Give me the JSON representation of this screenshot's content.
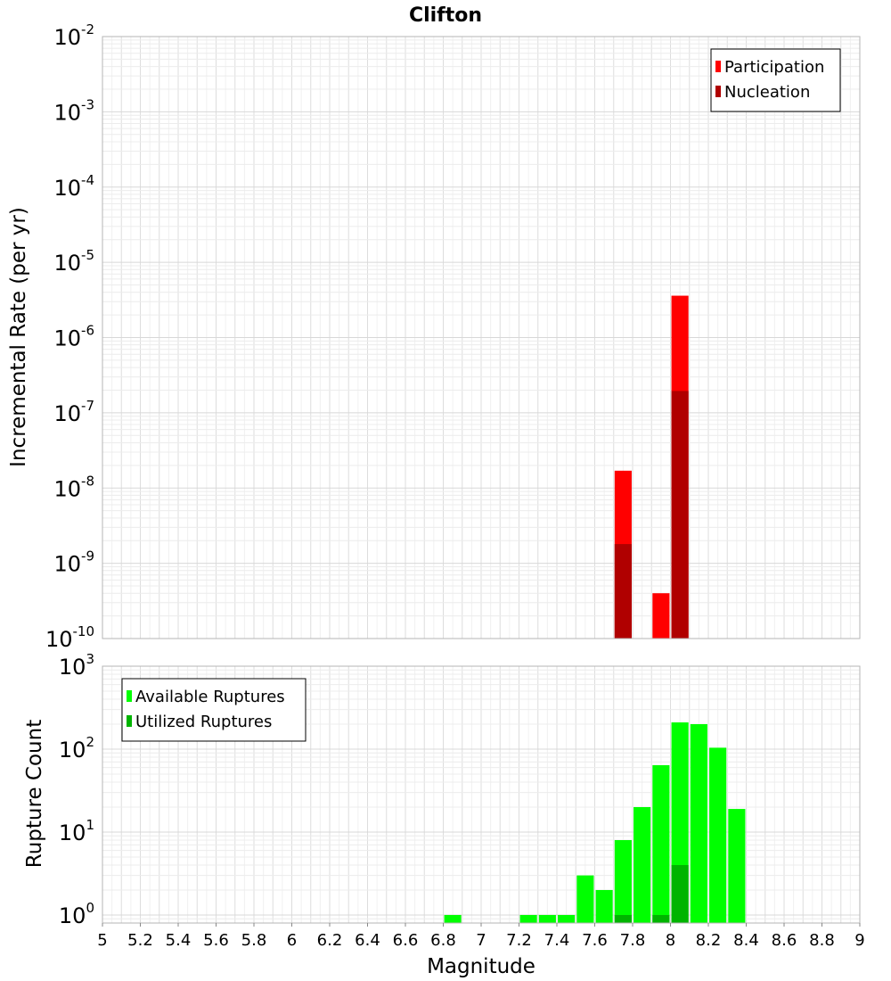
{
  "chart_data": [
    {
      "type": "bar",
      "title": "Clifton",
      "xlabel": "",
      "ylabel": "Incremental Rate (per yr)",
      "y_scale": "log",
      "xlim": [
        5,
        9
      ],
      "ylim": [
        1e-10,
        0.01
      ],
      "grid": true,
      "legend_position": "top-right",
      "series": [
        {
          "name": "Participation",
          "color": "#ff0000",
          "x": [
            7.75,
            7.95,
            8.05
          ],
          "values": [
            1.7e-08,
            4e-10,
            3.6e-06
          ]
        },
        {
          "name": "Nucleation",
          "color": "#b00000",
          "x": [
            7.75,
            8.05
          ],
          "values": [
            1.8e-09,
            1.95e-07
          ]
        }
      ]
    },
    {
      "type": "bar",
      "title": "",
      "xlabel": "Magnitude",
      "ylabel": "Rupture Count",
      "y_scale": "log",
      "xlim": [
        5,
        9
      ],
      "ylim": [
        0.8,
        1000
      ],
      "grid": true,
      "legend_position": "top-left",
      "x_ticks": [
        "5",
        "5.2",
        "5.4",
        "5.6",
        "5.8",
        "6",
        "6.2",
        "6.4",
        "6.6",
        "6.8",
        "7",
        "7.2",
        "7.4",
        "7.6",
        "7.8",
        "8",
        "8.2",
        "8.4",
        "8.6",
        "8.8",
        "9"
      ],
      "series": [
        {
          "name": "Available Ruptures",
          "color": "#00ff00",
          "x": [
            6.85,
            7.25,
            7.35,
            7.45,
            7.55,
            7.65,
            7.75,
            7.85,
            7.95,
            8.05,
            8.15,
            8.25,
            8.35
          ],
          "values": [
            1,
            1,
            1,
            1,
            3,
            2,
            8,
            20,
            64,
            210,
            200,
            104,
            19
          ]
        },
        {
          "name": "Utilized Ruptures",
          "color": "#00b400",
          "x": [
            7.75,
            7.95,
            8.05
          ],
          "values": [
            1,
            1,
            4
          ]
        }
      ]
    }
  ]
}
